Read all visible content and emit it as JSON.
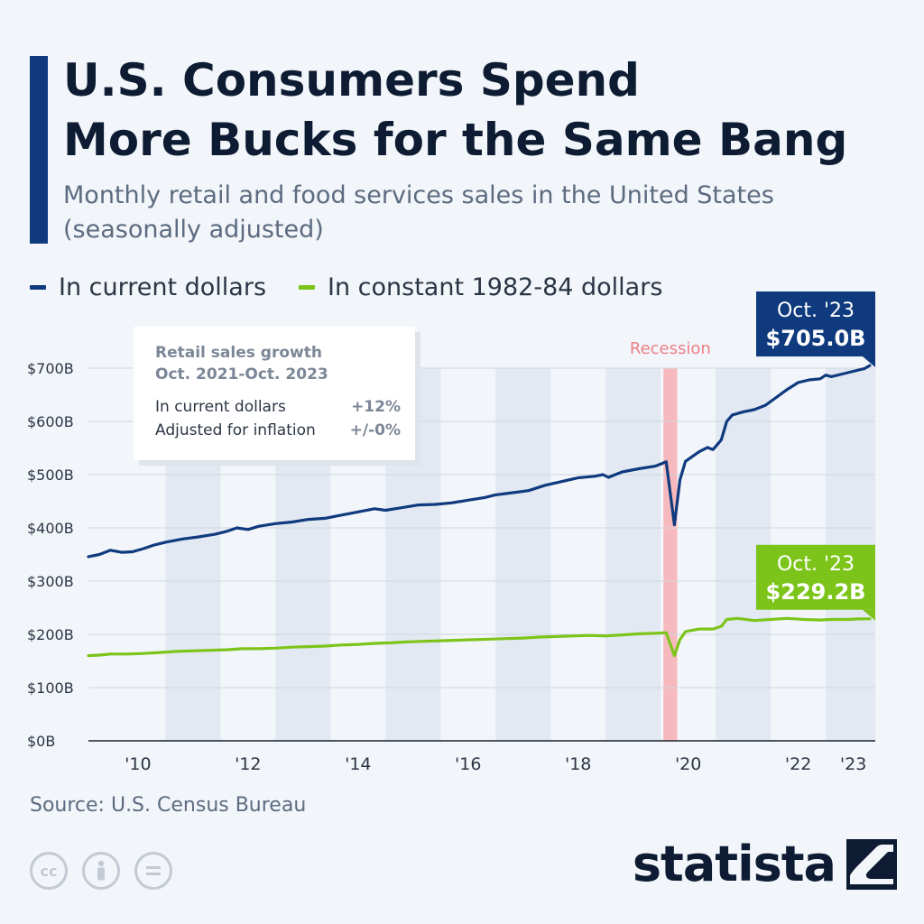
{
  "title_line1": "U.S. Consumers Spend",
  "title_line2": "More Bucks for the Same Bang",
  "subtitle_line1": "Monthly retail and food services sales in the United States",
  "subtitle_line2": "(seasonally adjusted)",
  "source": "Source: U.S. Census Bureau",
  "brand": "statista",
  "icons": [
    "cc-icon",
    "person-icon",
    "equals-icon",
    "statista-logo-icon"
  ],
  "colors": {
    "current": "#0f3a7e",
    "constant": "#7cc41a",
    "recession": "#f6b9bd",
    "band": "#e3e9f2",
    "accent": "#0f3a7e"
  },
  "info_box": {
    "title_line1": "Retail sales growth",
    "title_line2": "Oct. 2021-Oct. 2023",
    "rows": [
      {
        "label": "In current dollars",
        "value": "+12%"
      },
      {
        "label": "Adjusted for inflation",
        "value": "+/-0%"
      }
    ]
  },
  "chart_data": {
    "type": "line",
    "x_range": [
      2009.6,
      2023.9
    ],
    "ylim": [
      0,
      700
    ],
    "y_ticks": [
      0,
      100,
      200,
      300,
      400,
      500,
      600,
      700
    ],
    "y_tick_labels": [
      "$0B",
      "$100B",
      "$200B",
      "$300B",
      "$400B",
      "$500B",
      "$600B",
      "$700B"
    ],
    "x_ticks": [
      2010,
      2012,
      2014,
      2016,
      2018,
      2020,
      2022,
      2023
    ],
    "x_tick_labels": [
      "'10",
      "'12",
      "'14",
      "'16",
      "'18",
      "'20",
      "'22",
      "'23"
    ],
    "year_bands": [
      2011,
      2013,
      2015,
      2017,
      2019,
      2021,
      2023
    ],
    "recession": {
      "label": "Recession",
      "start": 2020.05,
      "end": 2020.3
    },
    "legend_position": "top-left",
    "series": [
      {
        "name": "In current dollars",
        "points": [
          [
            2009.6,
            346
          ],
          [
            2009.8,
            350
          ],
          [
            2010.0,
            358
          ],
          [
            2010.2,
            354
          ],
          [
            2010.4,
            355
          ],
          [
            2010.6,
            361
          ],
          [
            2010.8,
            368
          ],
          [
            2011.0,
            373
          ],
          [
            2011.3,
            379
          ],
          [
            2011.6,
            383
          ],
          [
            2011.9,
            388
          ],
          [
            2012.1,
            393
          ],
          [
            2012.3,
            400
          ],
          [
            2012.5,
            397
          ],
          [
            2012.7,
            403
          ],
          [
            2013.0,
            408
          ],
          [
            2013.3,
            411
          ],
          [
            2013.6,
            416
          ],
          [
            2013.9,
            418
          ],
          [
            2014.2,
            424
          ],
          [
            2014.5,
            430
          ],
          [
            2014.8,
            436
          ],
          [
            2015.0,
            433
          ],
          [
            2015.3,
            438
          ],
          [
            2015.6,
            443
          ],
          [
            2015.9,
            444
          ],
          [
            2016.2,
            447
          ],
          [
            2016.5,
            452
          ],
          [
            2016.8,
            457
          ],
          [
            2017.0,
            462
          ],
          [
            2017.3,
            466
          ],
          [
            2017.6,
            470
          ],
          [
            2017.9,
            480
          ],
          [
            2018.2,
            487
          ],
          [
            2018.5,
            494
          ],
          [
            2018.8,
            497
          ],
          [
            2018.95,
            500
          ],
          [
            2019.05,
            495
          ],
          [
            2019.3,
            505
          ],
          [
            2019.6,
            511
          ],
          [
            2019.9,
            516
          ],
          [
            2020.0,
            520
          ],
          [
            2020.1,
            524
          ],
          [
            2020.18,
            460
          ],
          [
            2020.25,
            406
          ],
          [
            2020.35,
            490
          ],
          [
            2020.45,
            525
          ],
          [
            2020.7,
            543
          ],
          [
            2020.85,
            551
          ],
          [
            2020.95,
            547
          ],
          [
            2021.1,
            565
          ],
          [
            2021.2,
            600
          ],
          [
            2021.3,
            612
          ],
          [
            2021.5,
            618
          ],
          [
            2021.7,
            622
          ],
          [
            2021.9,
            630
          ],
          [
            2022.1,
            645
          ],
          [
            2022.3,
            660
          ],
          [
            2022.5,
            673
          ],
          [
            2022.7,
            678
          ],
          [
            2022.9,
            680
          ],
          [
            2023.0,
            687
          ],
          [
            2023.1,
            684
          ],
          [
            2023.3,
            689
          ],
          [
            2023.5,
            694
          ],
          [
            2023.7,
            699
          ],
          [
            2023.8,
            705
          ]
        ]
      },
      {
        "name": "In constant 1982-84 dollars",
        "points": [
          [
            2009.6,
            160
          ],
          [
            2009.8,
            161
          ],
          [
            2010.0,
            163
          ],
          [
            2010.3,
            163
          ],
          [
            2010.6,
            164
          ],
          [
            2010.9,
            166
          ],
          [
            2011.2,
            168
          ],
          [
            2011.5,
            169
          ],
          [
            2011.8,
            170
          ],
          [
            2012.1,
            171
          ],
          [
            2012.4,
            173
          ],
          [
            2012.7,
            173
          ],
          [
            2013.0,
            174
          ],
          [
            2013.3,
            176
          ],
          [
            2013.6,
            177
          ],
          [
            2013.9,
            178
          ],
          [
            2014.2,
            180
          ],
          [
            2014.5,
            181
          ],
          [
            2014.8,
            183
          ],
          [
            2015.1,
            184
          ],
          [
            2015.4,
            186
          ],
          [
            2015.7,
            187
          ],
          [
            2016.0,
            188
          ],
          [
            2016.3,
            189
          ],
          [
            2016.6,
            190
          ],
          [
            2016.9,
            191
          ],
          [
            2017.2,
            192
          ],
          [
            2017.5,
            193
          ],
          [
            2017.8,
            195
          ],
          [
            2018.1,
            196
          ],
          [
            2018.4,
            197
          ],
          [
            2018.7,
            198
          ],
          [
            2019.0,
            197
          ],
          [
            2019.3,
            199
          ],
          [
            2019.6,
            201
          ],
          [
            2019.9,
            202
          ],
          [
            2020.1,
            203
          ],
          [
            2020.18,
            180
          ],
          [
            2020.25,
            160
          ],
          [
            2020.35,
            190
          ],
          [
            2020.45,
            205
          ],
          [
            2020.7,
            210
          ],
          [
            2020.95,
            210
          ],
          [
            2021.1,
            215
          ],
          [
            2021.2,
            228
          ],
          [
            2021.4,
            230
          ],
          [
            2021.7,
            226
          ],
          [
            2022.0,
            228
          ],
          [
            2022.3,
            230
          ],
          [
            2022.6,
            228
          ],
          [
            2022.9,
            227
          ],
          [
            2023.1,
            228
          ],
          [
            2023.4,
            228
          ],
          [
            2023.6,
            229
          ],
          [
            2023.8,
            229.2
          ]
        ]
      }
    ],
    "callouts": [
      {
        "series": 0,
        "label_line1": "Oct. '23",
        "label_line2": "$705.0B"
      },
      {
        "series": 1,
        "label_line1": "Oct. '23",
        "label_line2": "$229.2B"
      }
    ]
  }
}
